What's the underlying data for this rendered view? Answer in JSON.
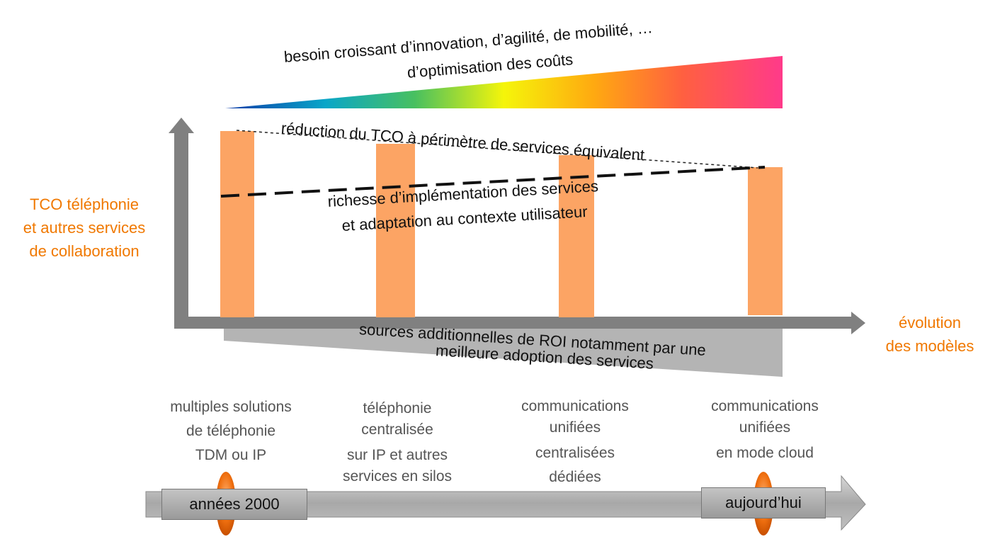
{
  "top_gradient": {
    "line1": "besoin croissant d’innovation, d’agilité, de mobilité, …",
    "line2": "d’optimisation des coûts"
  },
  "y_axis": {
    "lines": [
      "TCO téléphonie",
      "et autres services",
      "de collaboration"
    ],
    "color": "#f07800"
  },
  "x_axis": {
    "lines": [
      "évolution",
      "des modèles"
    ],
    "color": "#f07800"
  },
  "bar_color": "#fca464",
  "tco_line_label": "réduction du TCO à périmètre de services équivalent",
  "richness_label": {
    "line1": "richesse d’implémentation des services",
    "line2": "et adaptation au contexte utilisateur"
  },
  "roi_label": {
    "line1": "sources additionnelles de ROI notamment par une",
    "line2": "meilleure adoption des services"
  },
  "stages": [
    {
      "lines": [
        "multiples solutions",
        "de téléphonie",
        "TDM ou IP"
      ]
    },
    {
      "lines": [
        "téléphonie",
        "centralisée",
        "sur IP et autres",
        "services en silos"
      ]
    },
    {
      "lines": [
        "communications",
        "unifiées",
        "centralisées",
        "dédiées"
      ]
    },
    {
      "lines": [
        "communications",
        "unifiées",
        "en mode cloud"
      ]
    }
  ],
  "timeline": {
    "start": "années 2000",
    "end": "aujourd’hui"
  }
}
